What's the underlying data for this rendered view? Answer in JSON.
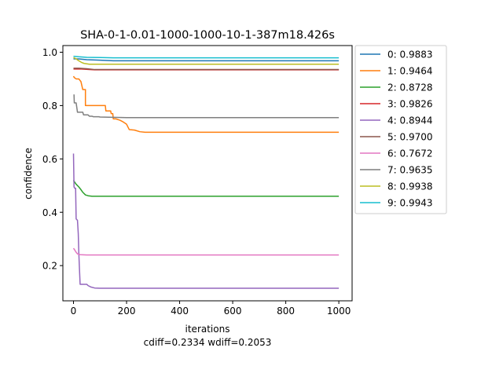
{
  "chart_data": {
    "type": "line",
    "title": "SHA-0-1-0.01-1000-1000-10-1-387m18.426s",
    "xlabel": "iterations",
    "ylabel": "confidence",
    "footer": "cdiff=0.2334 wdiff=0.2053",
    "xlim": [
      -40,
      1050
    ],
    "ylim": [
      0.068,
      1.025
    ],
    "xticks": [
      0,
      200,
      400,
      600,
      800,
      1000
    ],
    "yticks": [
      0.2,
      0.4,
      0.6,
      0.8,
      1.0
    ],
    "xtick_labels": [
      "0",
      "200",
      "400",
      "600",
      "800",
      "1000"
    ],
    "ytick_labels": [
      "0.2",
      "0.4",
      "0.6",
      "0.8",
      "1.0"
    ],
    "grid": false,
    "legend_position": "outside-right-top",
    "series": [
      {
        "name": "0: 0.9883",
        "color": "#1f77b4",
        "points": [
          [
            0,
            0.975
          ],
          [
            20,
            0.975
          ],
          [
            50,
            0.972
          ],
          [
            100,
            0.97
          ],
          [
            150,
            0.968
          ],
          [
            1000,
            0.968
          ]
        ]
      },
      {
        "name": "1: 0.9464",
        "color": "#ff7f0e",
        "points": [
          [
            0,
            0.91
          ],
          [
            3,
            0.905
          ],
          [
            10,
            0.9
          ],
          [
            20,
            0.9
          ],
          [
            28,
            0.89
          ],
          [
            35,
            0.86
          ],
          [
            45,
            0.86
          ],
          [
            45,
            0.8
          ],
          [
            60,
            0.8
          ],
          [
            120,
            0.8
          ],
          [
            122,
            0.78
          ],
          [
            140,
            0.78
          ],
          [
            142,
            0.77
          ],
          [
            148,
            0.77
          ],
          [
            150,
            0.75
          ],
          [
            160,
            0.75
          ],
          [
            175,
            0.745
          ],
          [
            185,
            0.74
          ],
          [
            200,
            0.73
          ],
          [
            210,
            0.71
          ],
          [
            230,
            0.708
          ],
          [
            250,
            0.702
          ],
          [
            270,
            0.7
          ],
          [
            1000,
            0.7
          ]
        ]
      },
      {
        "name": "2: 0.8728",
        "color": "#2ca02c",
        "points": [
          [
            0,
            0.52
          ],
          [
            3,
            0.515
          ],
          [
            10,
            0.505
          ],
          [
            20,
            0.495
          ],
          [
            28,
            0.485
          ],
          [
            35,
            0.475
          ],
          [
            45,
            0.465
          ],
          [
            55,
            0.462
          ],
          [
            70,
            0.46
          ],
          [
            1000,
            0.46
          ]
        ]
      },
      {
        "name": "3: 0.9826",
        "color": "#d62728",
        "points": [
          [
            0,
            0.937
          ],
          [
            30,
            0.937
          ],
          [
            60,
            0.935
          ],
          [
            80,
            0.934
          ],
          [
            1000,
            0.934
          ]
        ]
      },
      {
        "name": "4: 0.8944",
        "color": "#9467bd",
        "points": [
          [
            0,
            0.62
          ],
          [
            2,
            0.495
          ],
          [
            5,
            0.49
          ],
          [
            8,
            0.49
          ],
          [
            10,
            0.375
          ],
          [
            15,
            0.37
          ],
          [
            18,
            0.32
          ],
          [
            20,
            0.25
          ],
          [
            22,
            0.2
          ],
          [
            25,
            0.13
          ],
          [
            50,
            0.13
          ],
          [
            55,
            0.125
          ],
          [
            65,
            0.12
          ],
          [
            80,
            0.116
          ],
          [
            100,
            0.115
          ],
          [
            1000,
            0.115
          ]
        ]
      },
      {
        "name": "5: 0.9700",
        "color": "#8c564b",
        "points": [
          [
            0,
            0.94
          ],
          [
            20,
            0.94
          ],
          [
            50,
            0.938
          ],
          [
            80,
            0.935
          ],
          [
            1000,
            0.935
          ]
        ]
      },
      {
        "name": "6: 0.7672",
        "color": "#e377c2",
        "points": [
          [
            0,
            0.265
          ],
          [
            5,
            0.258
          ],
          [
            10,
            0.25
          ],
          [
            15,
            0.244
          ],
          [
            25,
            0.241
          ],
          [
            50,
            0.24
          ],
          [
            1000,
            0.24
          ]
        ]
      },
      {
        "name": "7: 0.9635",
        "color": "#7f7f7f",
        "points": [
          [
            0,
            0.84
          ],
          [
            2,
            0.84
          ],
          [
            3,
            0.81
          ],
          [
            10,
            0.81
          ],
          [
            15,
            0.775
          ],
          [
            35,
            0.775
          ],
          [
            38,
            0.765
          ],
          [
            55,
            0.765
          ],
          [
            60,
            0.76
          ],
          [
            70,
            0.76
          ],
          [
            75,
            0.758
          ],
          [
            95,
            0.758
          ],
          [
            100,
            0.757
          ],
          [
            150,
            0.756
          ],
          [
            200,
            0.755
          ],
          [
            1000,
            0.755
          ]
        ]
      },
      {
        "name": "8: 0.9938",
        "color": "#bcbd22",
        "points": [
          [
            0,
            0.98
          ],
          [
            10,
            0.975
          ],
          [
            20,
            0.968
          ],
          [
            30,
            0.962
          ],
          [
            40,
            0.958
          ],
          [
            60,
            0.955
          ],
          [
            100,
            0.955
          ],
          [
            1000,
            0.955
          ]
        ]
      },
      {
        "name": "9: 0.9943",
        "color": "#17becf",
        "points": [
          [
            0,
            0.985
          ],
          [
            20,
            0.983
          ],
          [
            50,
            0.981
          ],
          [
            100,
            0.98
          ],
          [
            150,
            0.979
          ],
          [
            1000,
            0.979
          ]
        ]
      }
    ]
  }
}
